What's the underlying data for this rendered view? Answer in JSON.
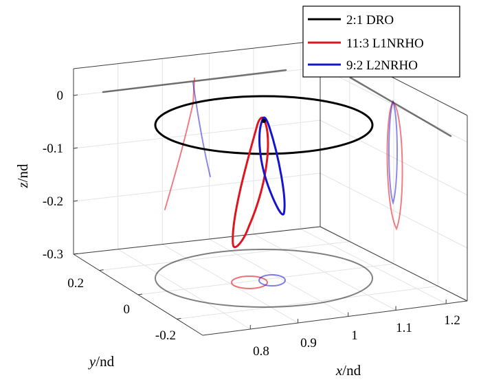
{
  "chart_data": {
    "type": "line",
    "projection": "3d",
    "xlabel_var": "x",
    "xlabel_unit": "/nd",
    "ylabel_var": "y",
    "ylabel_unit": "/nd",
    "zlabel_var": "z",
    "zlabel_unit": "/nd",
    "xticks": [
      "0.8",
      "0.9",
      "1",
      "1.1",
      "1.2"
    ],
    "yticks": [
      "0.2",
      "0",
      "-0.2"
    ],
    "zticks": [
      "0",
      "-0.1",
      "-0.2",
      "-0.3"
    ],
    "xlim": [
      0.75,
      1.25
    ],
    "ylim": [
      -0.3,
      0.3
    ],
    "zlim": [
      -0.3,
      0.03
    ],
    "grid": true,
    "box": true,
    "legend_position": "top-right",
    "series": [
      {
        "name": "2:1 DRO",
        "color": "#000000",
        "shape": "planar ellipse at z = 0",
        "center": [
          1.0,
          0.0,
          0.0
        ],
        "x_extent": [
          0.78,
          1.22
        ],
        "y_extent": [
          -0.22,
          0.22
        ]
      },
      {
        "name": "11:3 L1NRHO",
        "color": "#e0141e",
        "shape": "near-rectilinear halo orbit",
        "x_range": [
          0.94,
          0.99
        ],
        "y_range": [
          -0.02,
          0.02
        ],
        "z_range": [
          -0.29,
          -0.05
        ]
      },
      {
        "name": "9:2 L2NRHO",
        "color": "#1515cf",
        "shape": "near-rectilinear halo orbit",
        "x_range": [
          0.99,
          1.04
        ],
        "y_range": [
          -0.015,
          0.015
        ],
        "z_range": [
          -0.21,
          -0.05
        ]
      }
    ]
  }
}
